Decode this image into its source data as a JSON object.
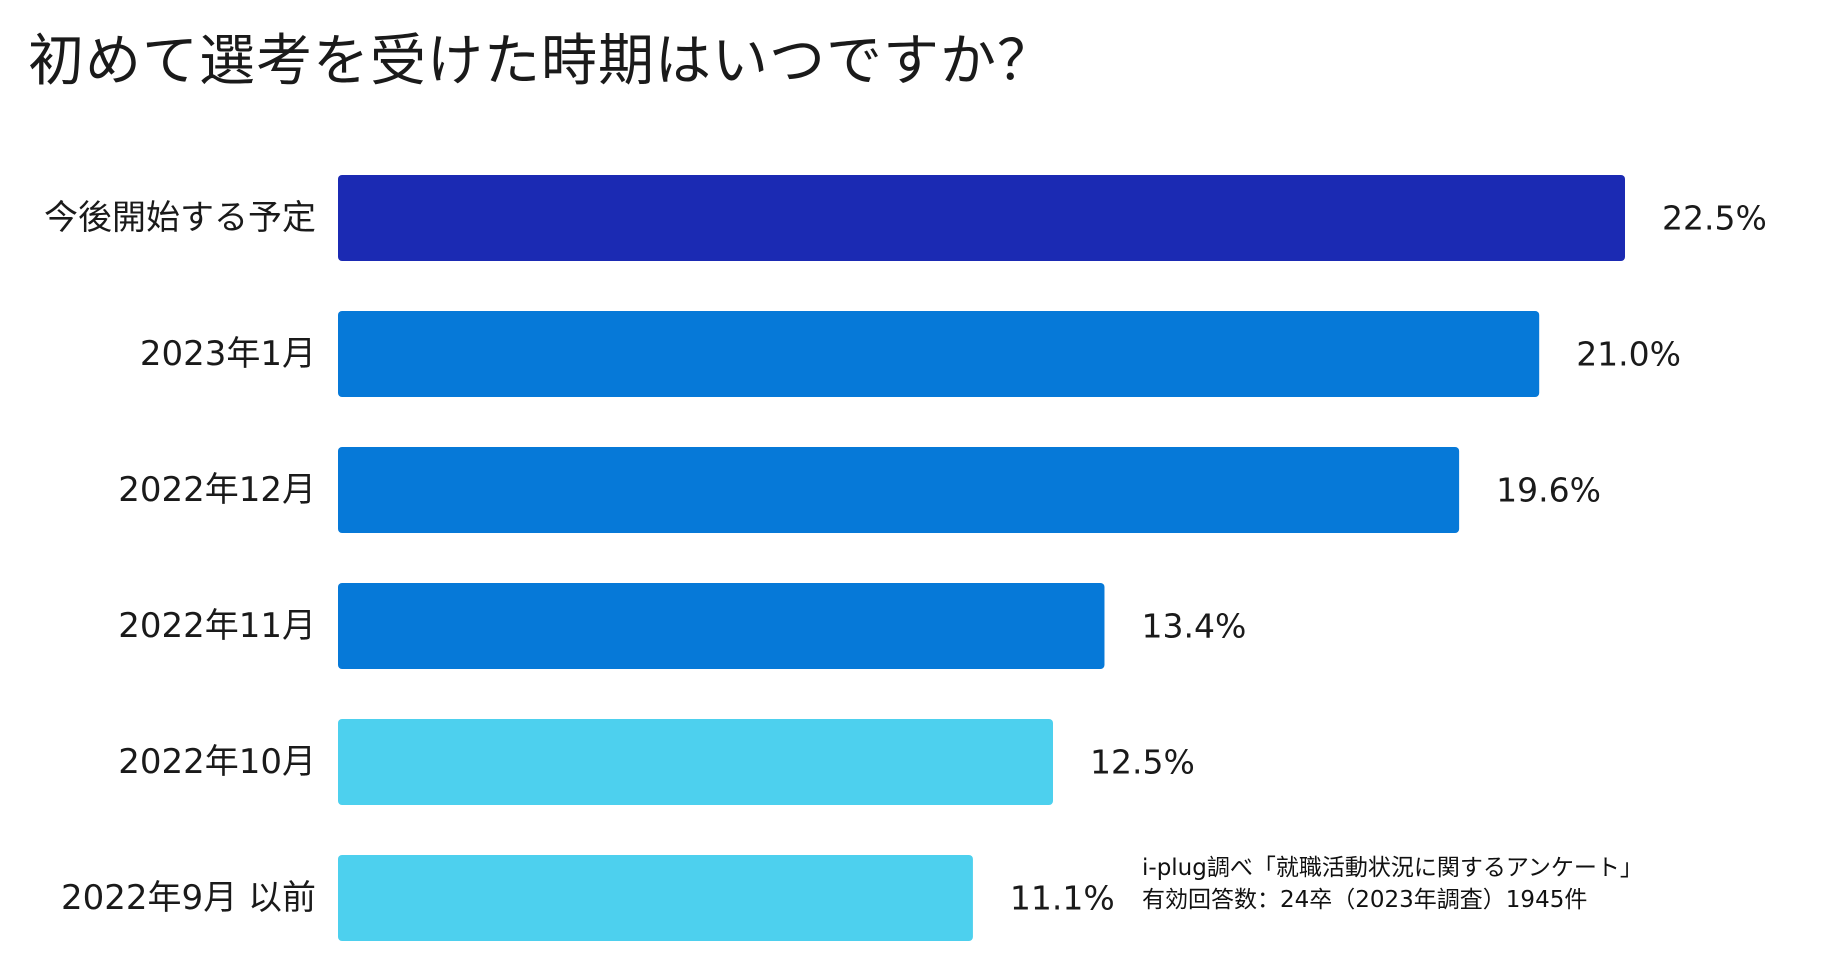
{
  "chart_data": {
    "type": "bar",
    "orientation": "horizontal",
    "title": "初めて選考を受けた時期はいつですか？",
    "categories": [
      "今後開始する予定",
      "2023年1月",
      "2022年12月",
      "2022年11月",
      "2022年10月",
      "2022年9月 以前"
    ],
    "values": [
      22.5,
      21.0,
      19.6,
      13.4,
      12.5,
      11.1
    ],
    "value_labels": [
      "22.5%",
      "21.0%",
      "19.6%",
      "13.4%",
      "12.5%",
      "11.1%"
    ],
    "bar_colors": [
      "#1b2ab3",
      "#0679d8",
      "#0679d8",
      "#0679d8",
      "#4dd0ee",
      "#4dd0ee"
    ],
    "value_unit": "%",
    "xlim": [
      0,
      22.5
    ],
    "grid": false,
    "legend": "none"
  },
  "source": {
    "line1": "i-plug調べ「就職活動状況に関するアンケート」",
    "line2": "有効回答数：24卒（2023年調査）1945件"
  }
}
